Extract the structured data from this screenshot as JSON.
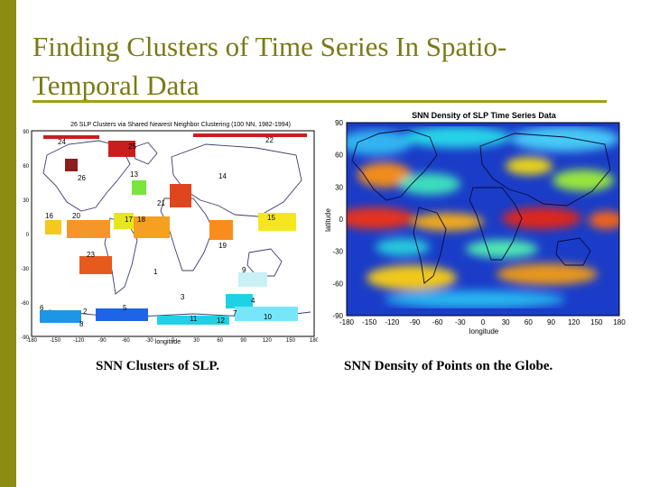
{
  "slide": {
    "title": "Finding Clusters of Time Series In Spatio-Temporal Data",
    "colors": {
      "accent": "#8c8c14",
      "title": "#7a7a14"
    }
  },
  "left_figure": {
    "title": "26 SLP Clusters via Shared Nearest Neighbor Clustering (100 NN, 1982-1994)",
    "xlabel": "longitude",
    "x_ticks": [
      "-180",
      "-150",
      "-120",
      "-90",
      "-60",
      "-30",
      "0",
      "30",
      "60",
      "90",
      "120",
      "150",
      "180"
    ],
    "y_ticks": [
      "90",
      "60",
      "30",
      "0",
      "-30",
      "-60",
      "-90"
    ],
    "cluster_labels": [
      "24",
      "25",
      "22",
      "26",
      "13",
      "14",
      "21",
      "20",
      "17",
      "18",
      "16",
      "15",
      "19",
      "23",
      "1",
      "9",
      "3",
      "4",
      "6",
      "2",
      "5",
      "7",
      "10",
      "8",
      "11",
      "12"
    ],
    "caption": "SNN Clusters of SLP."
  },
  "right_figure": {
    "title": "SNN Density of SLP Time Series Data",
    "xlabel": "longitude",
    "ylabel": "latitude",
    "x_ticks": [
      "-180",
      "-150",
      "-120",
      "-90",
      "-60",
      "-30",
      "0",
      "30",
      "60",
      "90",
      "120",
      "150",
      "180"
    ],
    "y_ticks": [
      "90",
      "60",
      "30",
      "0",
      "-30",
      "-60",
      "-90"
    ],
    "caption": "SNN Density of Points on the Globe."
  }
}
